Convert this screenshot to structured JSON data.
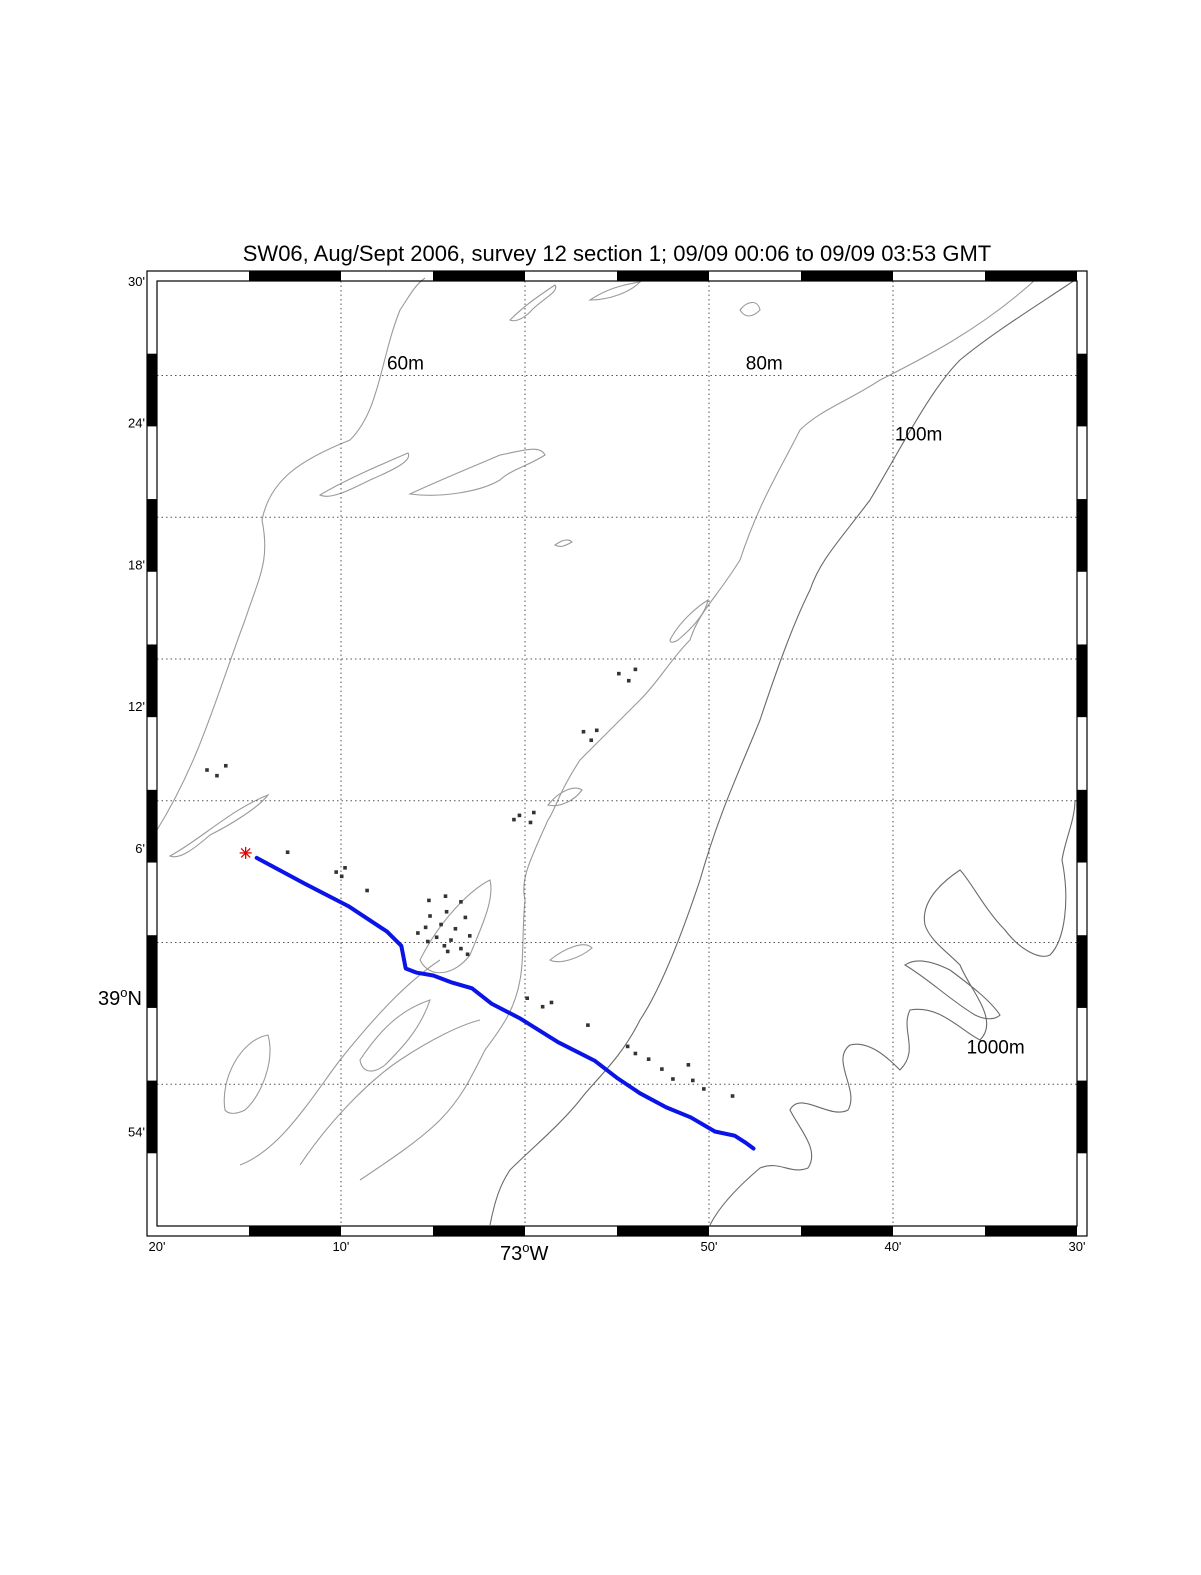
{
  "title": "SW06, Aug/Sept 2006,  survey 12 section 1; 09/09 00:06 to 09/09 03:53 GMT",
  "colors": {
    "track": "#0a14e6",
    "start_marker": "#e00000",
    "points": "#333333",
    "contours": "#9a9a9a"
  },
  "axes": {
    "lon_ticks": [
      {
        "label": "20'",
        "value": -73.3333
      },
      {
        "label": "10'",
        "value": -73.1667
      },
      {
        "label": "50'",
        "value": -72.8333
      },
      {
        "label": "40'",
        "value": -72.6667
      },
      {
        "label": "30'",
        "value": -72.5
      }
    ],
    "lon_degree": {
      "base": "73",
      "sup": "o",
      "suffix": "W",
      "value": -73.0
    },
    "lat_ticks": [
      {
        "label": "30'",
        "value": 39.5
      },
      {
        "label": "24'",
        "value": 39.4
      },
      {
        "label": "18'",
        "value": 39.3
      },
      {
        "label": "12'",
        "value": 39.2
      },
      {
        "label": "6'",
        "value": 39.1
      },
      {
        "label": "54'",
        "value": 38.9
      }
    ],
    "lat_degree": {
      "base": "39",
      "sup": "o",
      "suffix": "N",
      "value": 39.0
    },
    "lon_range": [
      -73.3333,
      -72.5
    ],
    "lat_range": [
      38.8333,
      39.5
    ]
  },
  "contour_labels": [
    {
      "text": "60m",
      "lon": -73.125,
      "lat": 39.4375
    },
    {
      "text": "80m",
      "lon": -72.8,
      "lat": 39.4375
    },
    {
      "text": "100m",
      "lon": -72.665,
      "lat": 39.3875
    },
    {
      "text": "1000m",
      "lon": -72.6,
      "lat": 38.955
    }
  ],
  "chart_data": {
    "type": "scatter",
    "title": "SW06, Aug/Sept 2006,  survey 12 section 1; 09/09 00:06 to 09/09 03:53 GMT",
    "xlabel": "",
    "ylabel": "",
    "xlim": [
      -73.3333,
      -72.5
    ],
    "ylim": [
      38.8333,
      39.5
    ],
    "grid": true,
    "start_marker": {
      "lon": -73.253,
      "lat": 39.0965
    },
    "track": [
      [
        -73.243,
        39.093
      ],
      [
        -73.2,
        39.075
      ],
      [
        -73.16,
        39.059
      ],
      [
        -73.125,
        39.041
      ],
      [
        -73.112,
        39.031
      ],
      [
        -73.108,
        39.015
      ],
      [
        -73.098,
        39.012
      ],
      [
        -73.083,
        39.01
      ],
      [
        -73.066,
        39.005
      ],
      [
        -73.048,
        39.001
      ],
      [
        -73.03,
        38.99
      ],
      [
        -73.005,
        38.98
      ],
      [
        -72.97,
        38.963
      ],
      [
        -72.937,
        38.95
      ],
      [
        -72.917,
        38.938
      ],
      [
        -72.896,
        38.927
      ],
      [
        -72.872,
        38.917
      ],
      [
        -72.85,
        38.91
      ],
      [
        -72.828,
        38.9
      ],
      [
        -72.81,
        38.897
      ],
      [
        -72.8,
        38.892
      ],
      [
        -72.793,
        38.888
      ]
    ],
    "points": [
      [
        -73.288,
        39.155
      ],
      [
        -73.279,
        39.151
      ],
      [
        -73.271,
        39.158
      ],
      [
        -73.215,
        39.097
      ],
      [
        -73.171,
        39.083
      ],
      [
        -73.163,
        39.086
      ],
      [
        -73.166,
        39.08
      ],
      [
        -73.143,
        39.07
      ],
      [
        -73.087,
        39.063
      ],
      [
        -73.072,
        39.066
      ],
      [
        -73.058,
        39.062
      ],
      [
        -73.086,
        39.052
      ],
      [
        -73.071,
        39.055
      ],
      [
        -73.054,
        39.051
      ],
      [
        -73.09,
        39.044
      ],
      [
        -73.076,
        39.046
      ],
      [
        -73.063,
        39.043
      ],
      [
        -73.097,
        39.04
      ],
      [
        -73.08,
        39.037
      ],
      [
        -73.067,
        39.035
      ],
      [
        -73.05,
        39.038
      ],
      [
        -73.088,
        39.034
      ],
      [
        -73.073,
        39.031
      ],
      [
        -73.058,
        39.029
      ],
      [
        -73.07,
        39.027
      ],
      [
        -73.052,
        39.025
      ],
      [
        -73.01,
        39.12
      ],
      [
        -73.005,
        39.123
      ],
      [
        -72.995,
        39.118
      ],
      [
        -72.992,
        39.125
      ],
      [
        -72.947,
        39.182
      ],
      [
        -72.94,
        39.176
      ],
      [
        -72.935,
        39.183
      ],
      [
        -72.915,
        39.223
      ],
      [
        -72.906,
        39.218
      ],
      [
        -72.9,
        39.226
      ],
      [
        -72.998,
        38.994
      ],
      [
        -72.984,
        38.988
      ],
      [
        -72.976,
        38.991
      ],
      [
        -72.943,
        38.975
      ],
      [
        -72.907,
        38.96
      ],
      [
        -72.9,
        38.955
      ],
      [
        -72.888,
        38.951
      ],
      [
        -72.876,
        38.944
      ],
      [
        -72.866,
        38.937
      ],
      [
        -72.852,
        38.947
      ],
      [
        -72.848,
        38.936
      ],
      [
        -72.838,
        38.93
      ],
      [
        -72.812,
        38.925
      ]
    ]
  }
}
